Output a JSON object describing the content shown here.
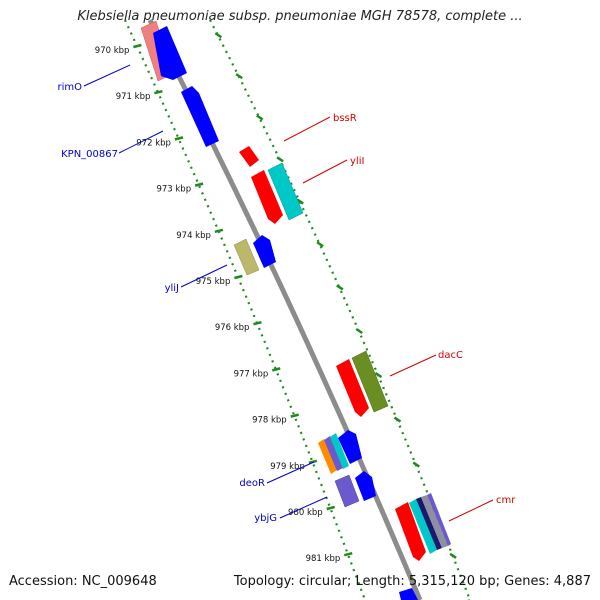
{
  "title": "Klebsiella pneumoniae subsp. pneumoniae MGH 78578, complete ...",
  "footer": {
    "accession": "Accession: NC_009648",
    "info": "Topology: circular; Length: 5,315,120 bp; Genes: 4,887"
  },
  "colors": {
    "backbone": "#8c8c8c",
    "tick": "#1f8a1f",
    "forward_label": "#d40000",
    "reverse_label": "#0000c8"
  },
  "kbp_ticks": [
    "970 kbp",
    "971 kbp",
    "972 kbp",
    "973 kbp",
    "974 kbp",
    "975 kbp",
    "976 kbp",
    "977 kbp",
    "978 kbp",
    "979 kbp",
    "980 kbp",
    "981 kbp"
  ],
  "genes": {
    "forward": [
      {
        "name": "bssR",
        "color": "#ff0000"
      },
      {
        "name": "yliI",
        "color": "#00c8c8"
      },
      {
        "name": "dacC",
        "color": "#6b8e23"
      },
      {
        "name": "cmr",
        "color": "#808080"
      }
    ],
    "reverse": [
      {
        "name": "rimO",
        "color": "#0000ff"
      },
      {
        "name": "KPN_00867",
        "color": "#0000ff"
      },
      {
        "name": "yliJ",
        "color": "#bdb76b"
      },
      {
        "name": "deoR",
        "color": "#ff8c00"
      },
      {
        "name": "ybjG",
        "color": "#6a5acd"
      }
    ]
  }
}
